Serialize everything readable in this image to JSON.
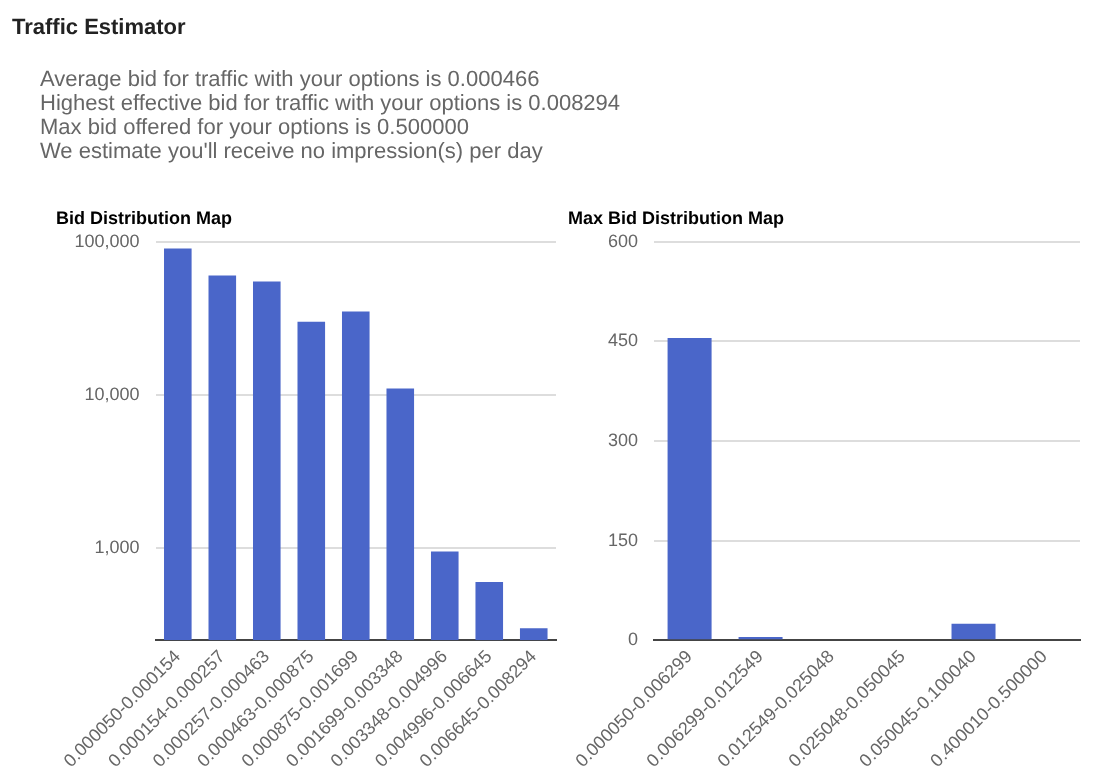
{
  "chart_data": [
    {
      "type": "other",
      "title": "Traffic Estimator",
      "annotations": [
        "Average bid for traffic with your options is 0.000466",
        "Highest effective bid for traffic with your options is 0.008294",
        "Max bid offered for your options is 0.500000",
        "We estimate you'll receive no impression(s) per day"
      ]
    },
    {
      "type": "bar",
      "title": "Bid Distribution Map",
      "categories": [
        "0.000050-0.000154",
        "0.000154-0.000257",
        "0.000257-0.000463",
        "0.000463-0.000875",
        "0.000875-0.001699",
        "0.001699-0.003348",
        "0.003348-0.004996",
        "0.004996-0.006645",
        "0.006645-0.008294"
      ],
      "values": [
        90000,
        60000,
        55000,
        30000,
        35000,
        11000,
        950,
        600,
        300
      ],
      "color": "#4a66c9",
      "log": "y",
      "ylim": [
        250,
        100000
      ],
      "yticks": [
        {
          "value": 1000,
          "label": "1,000"
        },
        {
          "value": 10000,
          "label": "10,000"
        },
        {
          "value": 100000,
          "label": "100,000"
        }
      ],
      "grid": "y"
    },
    {
      "type": "bar",
      "title": "Max Bid Distribution Map",
      "categories": [
        "0.000050-0.006299",
        "0.006299-0.012549",
        "0.012549-0.025048",
        "0.025048-0.050045",
        "0.050045-0.100040",
        "0.400010-0.500000"
      ],
      "values": [
        455,
        5,
        0,
        0,
        25,
        0
      ],
      "color": "#4a66c9",
      "ylim": [
        0,
        600
      ],
      "yticks": [
        0,
        150,
        300,
        450,
        600
      ],
      "grid": "y"
    }
  ]
}
